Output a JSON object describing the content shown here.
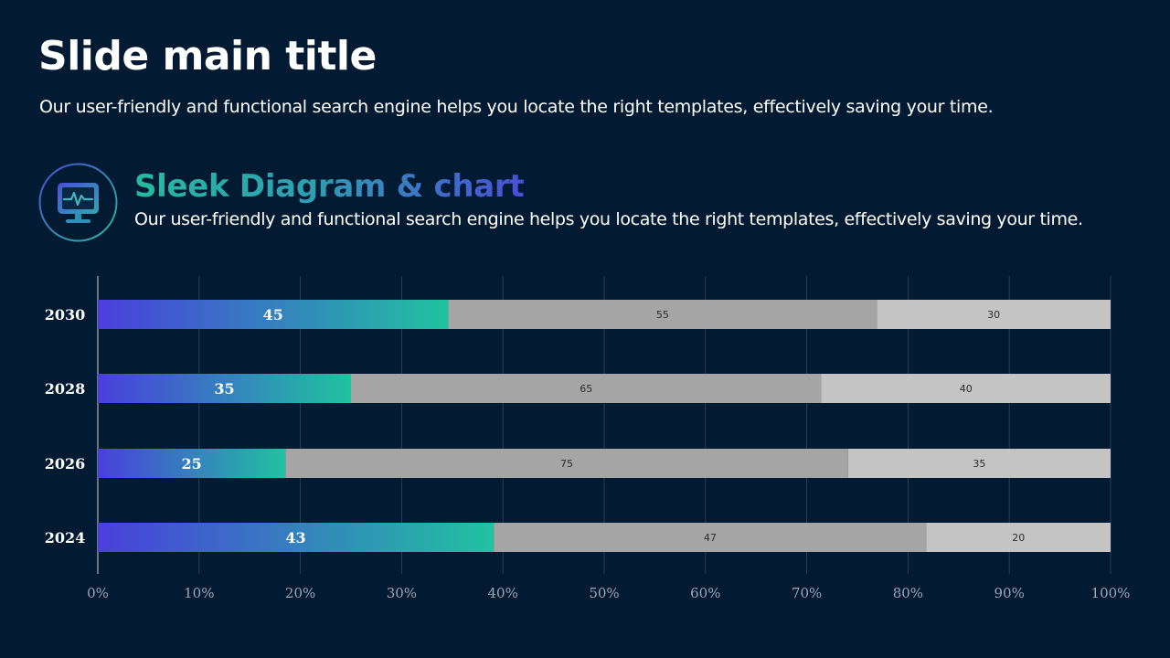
{
  "header": {
    "title": "Slide main title",
    "subtitle": "Our user-friendly and functional search engine helps you locate the right templates, effectively saving your time."
  },
  "section": {
    "icon": "monitor-pulse-icon",
    "title": "Sleek Diagram & chart",
    "subtitle": "Our user-friendly and functional search engine helps you locate the right templates, effectively saving your time."
  },
  "colors": {
    "background": "#031a33",
    "gradient_start": "#4a3fdc",
    "gradient_end": "#21c2a0",
    "series2": "#a5a5a5",
    "series3": "#c4c4c4",
    "grid": "#2a3d57"
  },
  "chart_data": {
    "type": "bar",
    "orientation": "horizontal",
    "stacked": "percent",
    "title": "",
    "xlabel": "",
    "ylabel": "",
    "categories": [
      "2030",
      "2028",
      "2026",
      "2024"
    ],
    "series": [
      {
        "values": [
          45,
          35,
          25,
          43
        ]
      },
      {
        "values": [
          55,
          65,
          75,
          47
        ]
      },
      {
        "values": [
          30,
          40,
          35,
          20
        ]
      }
    ],
    "x_ticks": [
      "0%",
      "10%",
      "20%",
      "30%",
      "40%",
      "50%",
      "60%",
      "70%",
      "80%",
      "90%",
      "100%"
    ],
    "xlim": [
      0,
      100
    ],
    "grid": true,
    "legend": "none"
  }
}
